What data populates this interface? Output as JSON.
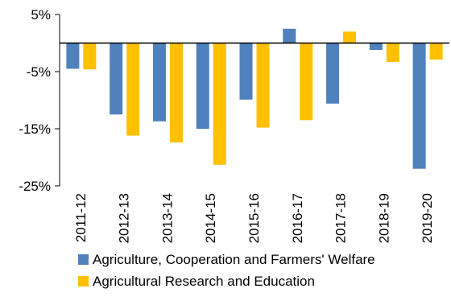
{
  "chart_data": {
    "type": "bar",
    "title": "",
    "xlabel": "",
    "ylabel": "",
    "categories": [
      "2011-12",
      "2012-13",
      "2013-14",
      "2014-15",
      "2015-16",
      "2016-17",
      "2017-18",
      "2018-19",
      "2019-20"
    ],
    "series": [
      {
        "name": "Agriculture, Cooperation and Farmers' Welfare",
        "color": "#4f81bd",
        "values": [
          -4.5,
          -12.5,
          -13.7,
          -15.0,
          -9.9,
          2.5,
          -10.6,
          -1.2,
          -22.0
        ]
      },
      {
        "name": "Agricultural Research and Education",
        "color": "#ffc000",
        "values": [
          -4.6,
          -16.2,
          -17.4,
          -21.3,
          -14.8,
          -13.5,
          2.0,
          -3.3,
          -2.9
        ]
      }
    ],
    "ylim": [
      -25,
      5
    ],
    "yticks": [
      5,
      -5,
      -15,
      -25
    ],
    "ytick_labels": [
      "5%",
      "-5%",
      "-15%",
      "-25%"
    ],
    "grid": false,
    "legend_position": "bottom"
  }
}
